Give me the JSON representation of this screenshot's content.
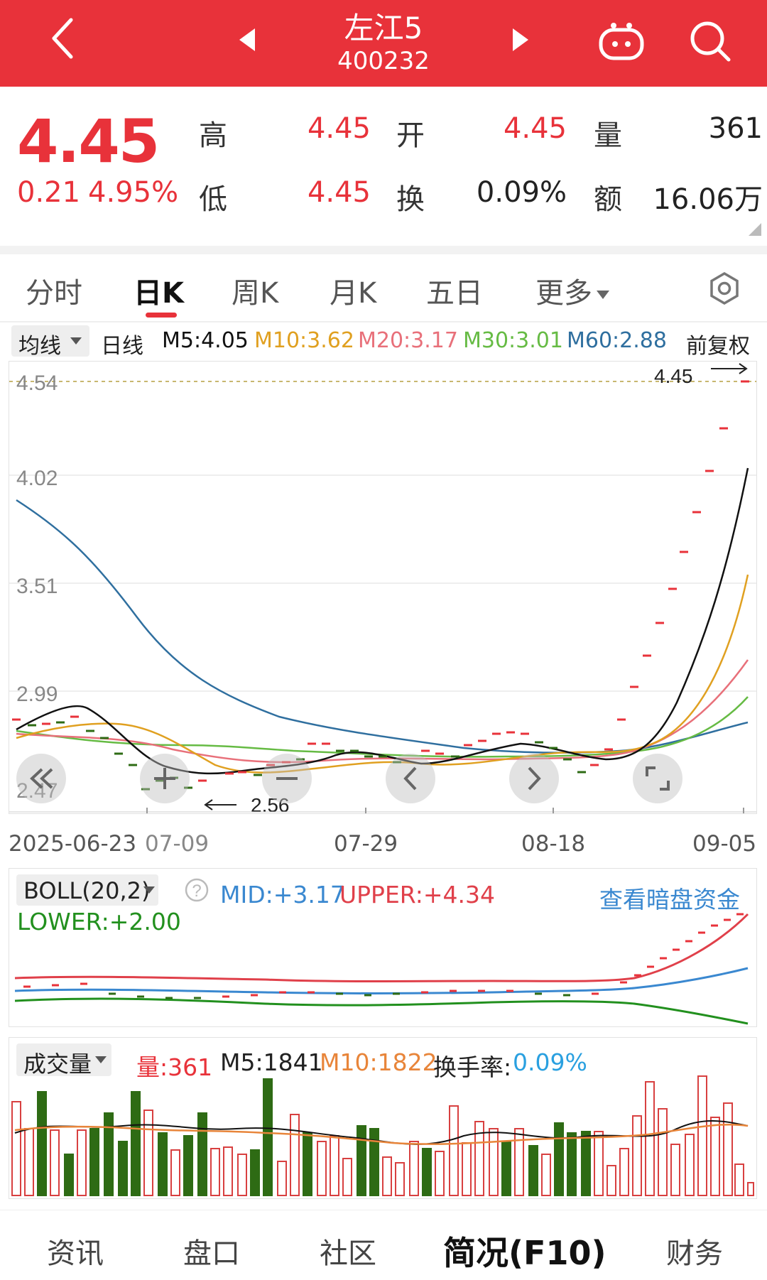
{
  "header": {
    "title": "左江5",
    "code": "400232"
  },
  "quote": {
    "price": "4.45",
    "change": "0.21",
    "change_pct": "4.95%",
    "high_label": "高",
    "high": "4.45",
    "open_label": "开",
    "open": "4.45",
    "volume_label": "量",
    "volume": "361",
    "low_label": "低",
    "low": "4.45",
    "turnover_label": "换",
    "turnover": "0.09%",
    "amount_label": "额",
    "amount": "16.06万"
  },
  "tabs": [
    "分时",
    "日K",
    "周K",
    "月K",
    "五日",
    "更多"
  ],
  "active_tab": "日K",
  "ma_bar": {
    "selector": "均线",
    "kind": "日线",
    "m5": "M5:4.05",
    "m10": "M10:3.62",
    "m20": "M20:3.17",
    "m30": "M30:3.01",
    "m60": "M60:2.88",
    "adjust": "前复权"
  },
  "kline": {
    "y_ticks": [
      "4.54",
      "4.02",
      "3.51",
      "2.99",
      "2.47"
    ],
    "max_label": "4.45",
    "min_label": "2.56",
    "x_labels": [
      "2025-06-23",
      "07-09",
      "07-29",
      "08-18",
      "09-05"
    ]
  },
  "boll": {
    "selector": "BOLL(20,2)",
    "mid": "MID:+3.17",
    "upper": "UPPER:+4.34",
    "lower": "LOWER:+2.00",
    "link": "查看暗盘资金"
  },
  "volume_panel": {
    "selector": "成交量",
    "vol": "量:361",
    "m5": "M5:1841",
    "m10": "M10:1822",
    "turnover_label": "换手率:",
    "turnover": "0.09%"
  },
  "bottom_nav": [
    "资讯",
    "盘口",
    "社区",
    "简况(F10)",
    "财务"
  ],
  "colors": {
    "brand_red": "#e8323a",
    "up": "#e8323a",
    "down": "#2e6b14",
    "m5": "#111111",
    "m10": "#e0a020",
    "m20": "#e8707a",
    "m30": "#66bb44",
    "m60": "#2f6f9f",
    "boll_mid": "#3a88d0",
    "turnover": "#2aa0e0"
  },
  "icons": [
    "back-arrow-icon",
    "prev-stock-icon",
    "next-stock-icon",
    "robot-icon",
    "search-icon",
    "settings-icon",
    "zoom-in-icon",
    "zoom-out-icon",
    "scroll-left-icon",
    "scroll-right-icon",
    "fast-back-icon",
    "fullscreen-icon"
  ]
}
